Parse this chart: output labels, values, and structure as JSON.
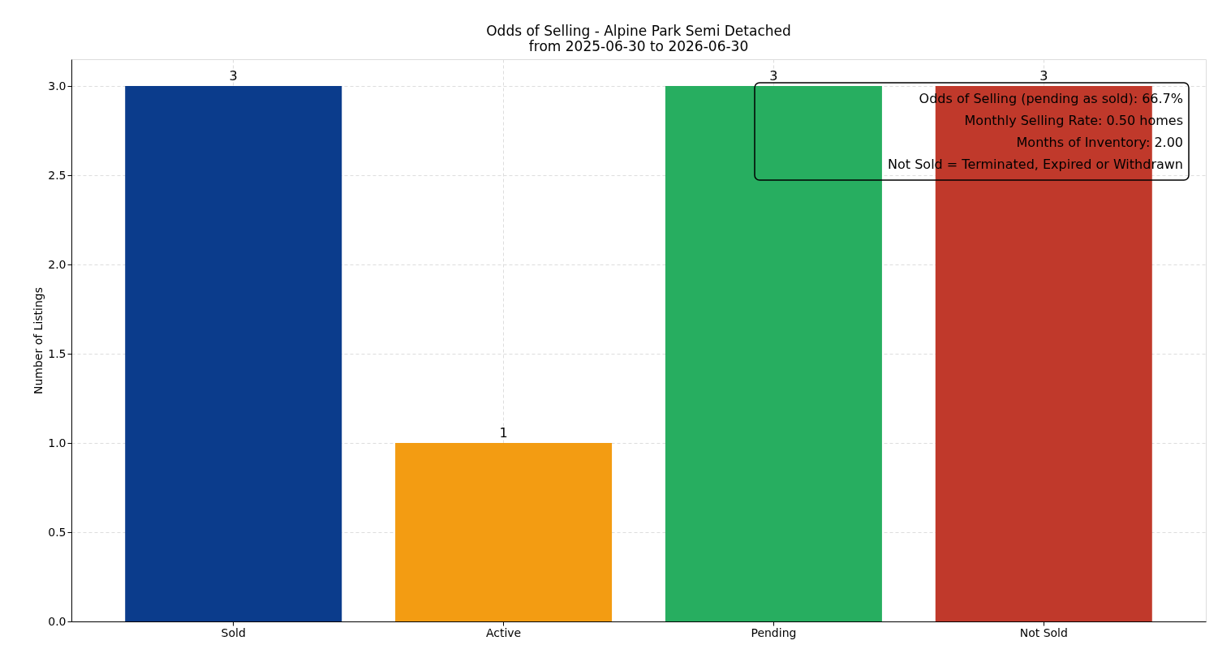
{
  "chart_data": {
    "type": "bar",
    "title": "Odds of Selling - Alpine Park Semi Detached",
    "subtitle": "from 2025-06-30 to 2026-06-30",
    "ylabel": "Number of Listings",
    "categories": [
      "Sold",
      "Active",
      "Pending",
      "Not Sold"
    ],
    "values": [
      3,
      1,
      3,
      3
    ],
    "colors": [
      "#0b3c8c",
      "#f39c12",
      "#27ae60",
      "#c0392b"
    ],
    "ylim": [
      0,
      3.15
    ],
    "yticks": [
      {
        "value": 0,
        "label": "0.0"
      },
      {
        "value": 0.5,
        "label": "0.5"
      },
      {
        "value": 1,
        "label": "1.0"
      },
      {
        "value": 1.5,
        "label": "1.5"
      },
      {
        "value": 2,
        "label": "2.0"
      },
      {
        "value": 2.5,
        "label": "2.5"
      },
      {
        "value": 3,
        "label": "3.0"
      }
    ],
    "grid": true,
    "data_labels": true,
    "annotations": [
      "Odds of Selling (pending as sold): 66.7%",
      "Monthly Selling Rate: 0.50 homes",
      "Months of Inventory: 2.00",
      "Not Sold = Terminated, Expired or Withdrawn"
    ]
  }
}
